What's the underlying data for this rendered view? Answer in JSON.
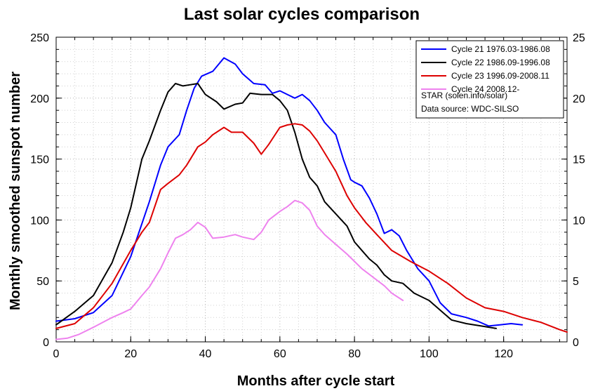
{
  "chart_data": {
    "type": "line",
    "title": "Last solar cycles comparison",
    "xlabel": "Months after cycle start",
    "ylabel": "Monthly smoothed sunspot number",
    "xlim": [
      0,
      137
    ],
    "ylim": [
      0,
      250
    ],
    "y2lim": [
      0,
      25
    ],
    "x_ticks": [
      0,
      20,
      40,
      60,
      80,
      100,
      120
    ],
    "y_ticks": [
      0,
      50,
      100,
      150,
      200,
      250
    ],
    "y2_ticks": [
      0,
      5,
      10,
      15,
      20,
      25
    ],
    "x_tick_labels": [
      "0",
      "20",
      "40",
      "60",
      "80",
      "100",
      "120"
    ],
    "y_tick_labels": [
      "0",
      "50",
      "100",
      "150",
      "200",
      "250"
    ],
    "y2_tick_labels": [
      "0",
      "5",
      "10",
      "15",
      "20",
      "25"
    ],
    "grid": true,
    "legend_position": "top-right",
    "legend_notes": [
      "STAR (solen.info/solar)",
      "Data source: WDC-SILSO"
    ],
    "series": [
      {
        "name": "Cycle 21 1976.03-1986.08",
        "color": "#0000ff",
        "x": [
          0,
          5,
          10,
          15,
          20,
          25,
          28,
          30,
          33,
          35,
          37,
          39,
          42,
          45,
          48,
          50,
          53,
          56,
          58,
          60,
          62,
          64,
          66,
          68,
          70,
          72,
          75,
          77,
          79,
          80,
          82,
          84,
          86,
          88,
          90,
          92,
          94,
          97,
          100,
          103,
          106,
          110,
          113,
          116,
          119,
          122,
          125
        ],
        "y": [
          17,
          19,
          24,
          38,
          70,
          115,
          145,
          160,
          170,
          190,
          208,
          218,
          222,
          233,
          228,
          220,
          212,
          211,
          204,
          206,
          203,
          200,
          203,
          198,
          190,
          180,
          170,
          150,
          133,
          131,
          128,
          118,
          105,
          89,
          92,
          87,
          75,
          60,
          50,
          32,
          23,
          20,
          17,
          13,
          14,
          15,
          14
        ]
      },
      {
        "name": "Cycle 22 1986.09-1996.08",
        "color": "#000000",
        "x": [
          0,
          5,
          10,
          15,
          18,
          20,
          23,
          25,
          28,
          30,
          32,
          34,
          36,
          38,
          40,
          43,
          45,
          48,
          50,
          52,
          55,
          58,
          60,
          62,
          64,
          66,
          68,
          70,
          72,
          75,
          78,
          80,
          82,
          84,
          86,
          88,
          90,
          93,
          96,
          100,
          103,
          106,
          110,
          114,
          118
        ],
        "y": [
          14,
          25,
          38,
          65,
          90,
          110,
          150,
          165,
          190,
          205,
          212,
          210,
          211,
          212,
          203,
          197,
          191,
          195,
          196,
          204,
          203,
          203,
          198,
          190,
          172,
          150,
          135,
          128,
          115,
          105,
          95,
          82,
          75,
          68,
          63,
          55,
          50,
          48,
          40,
          34,
          26,
          18,
          15,
          13,
          11
        ]
      },
      {
        "name": "Cycle 23 1996.09-2008.11",
        "color": "#dd0000",
        "x": [
          0,
          5,
          10,
          15,
          20,
          23,
          25,
          28,
          30,
          33,
          35,
          38,
          40,
          42,
          45,
          47,
          50,
          53,
          55,
          57,
          60,
          62,
          64,
          66,
          68,
          70,
          72,
          75,
          78,
          80,
          83,
          86,
          90,
          95,
          100,
          105,
          110,
          115,
          120,
          125,
          130,
          135,
          137
        ],
        "y": [
          11,
          15,
          28,
          48,
          75,
          90,
          98,
          125,
          130,
          137,
          145,
          160,
          164,
          170,
          176,
          172,
          172,
          163,
          154,
          162,
          176,
          178,
          179,
          178,
          173,
          165,
          155,
          140,
          120,
          110,
          98,
          88,
          75,
          66,
          58,
          48,
          36,
          28,
          25,
          20,
          16,
          10,
          8
        ]
      },
      {
        "name": "Cycle 24 2008.12-",
        "color": "#ee82ee",
        "x": [
          0,
          3,
          6,
          10,
          15,
          18,
          20,
          23,
          25,
          28,
          30,
          32,
          34,
          36,
          38,
          40,
          42,
          45,
          48,
          50,
          53,
          55,
          57,
          60,
          62,
          64,
          66,
          68,
          70,
          72,
          75,
          78,
          80,
          82,
          85,
          88,
          90,
          93
        ],
        "y": [
          2,
          3,
          6,
          12,
          20,
          24,
          27,
          38,
          45,
          60,
          73,
          85,
          88,
          92,
          98,
          94,
          85,
          86,
          88,
          86,
          84,
          90,
          100,
          107,
          111,
          116,
          114,
          108,
          95,
          88,
          80,
          72,
          66,
          60,
          53,
          46,
          40,
          34
        ]
      }
    ]
  }
}
